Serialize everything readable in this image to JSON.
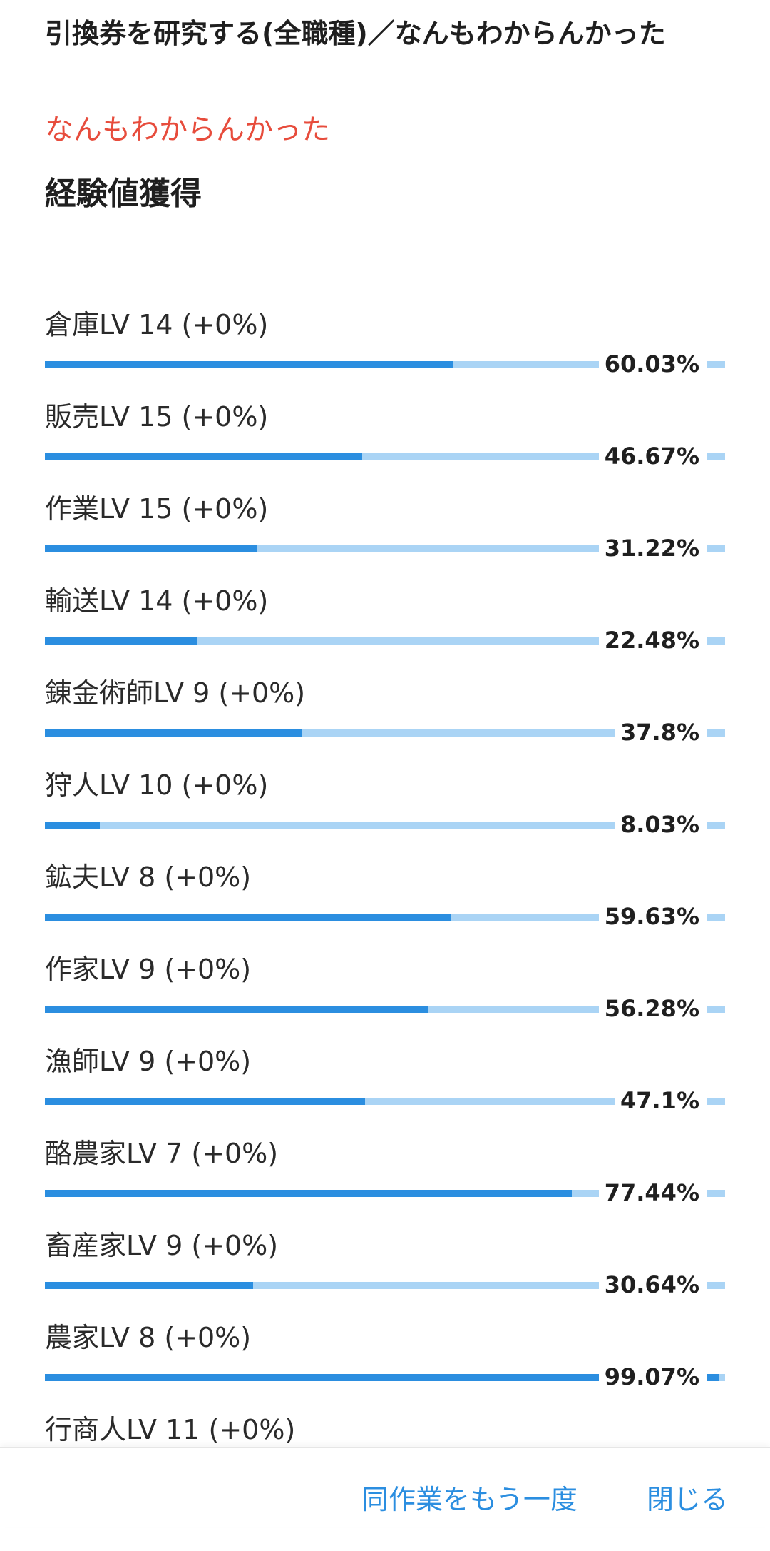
{
  "header": {
    "title": "引換券を研究する(全職種)／なんもわからんかった"
  },
  "result": {
    "message": "なんもわからんかった"
  },
  "experience": {
    "heading": "経験値獲得",
    "skills": [
      {
        "label": "倉庫LV 14 (+0%)",
        "percent_text": "60.03%",
        "progress": 60.03
      },
      {
        "label": "販売LV 15 (+0%)",
        "percent_text": "46.67%",
        "progress": 46.67
      },
      {
        "label": "作業LV 15 (+0%)",
        "percent_text": "31.22%",
        "progress": 31.22
      },
      {
        "label": "輸送LV 14 (+0%)",
        "percent_text": "22.48%",
        "progress": 22.48
      },
      {
        "label": "錬金術師LV 9 (+0%)",
        "percent_text": "37.8%",
        "progress": 37.8
      },
      {
        "label": "狩人LV 10 (+0%)",
        "percent_text": "8.03%",
        "progress": 8.03
      },
      {
        "label": "鉱夫LV 8 (+0%)",
        "percent_text": "59.63%",
        "progress": 59.63
      },
      {
        "label": "作家LV 9 (+0%)",
        "percent_text": "56.28%",
        "progress": 56.28
      },
      {
        "label": "漁師LV 9 (+0%)",
        "percent_text": "47.1%",
        "progress": 47.1
      },
      {
        "label": "酪農家LV 7 (+0%)",
        "percent_text": "77.44%",
        "progress": 77.44
      },
      {
        "label": "畜産家LV 9 (+0%)",
        "percent_text": "30.64%",
        "progress": 30.64
      },
      {
        "label": "農家LV 8 (+0%)",
        "percent_text": "99.07%",
        "progress": 99.07
      },
      {
        "label": "行商人LV 11 (+0%)",
        "percent_text": "",
        "progress": null
      }
    ]
  },
  "footer": {
    "repeat_label": "同作業をもう一度",
    "close_label": "閉じる"
  },
  "colors": {
    "accent": "#2b8ee0",
    "track": "#aad4f5",
    "result_text": "#e74c3c"
  }
}
